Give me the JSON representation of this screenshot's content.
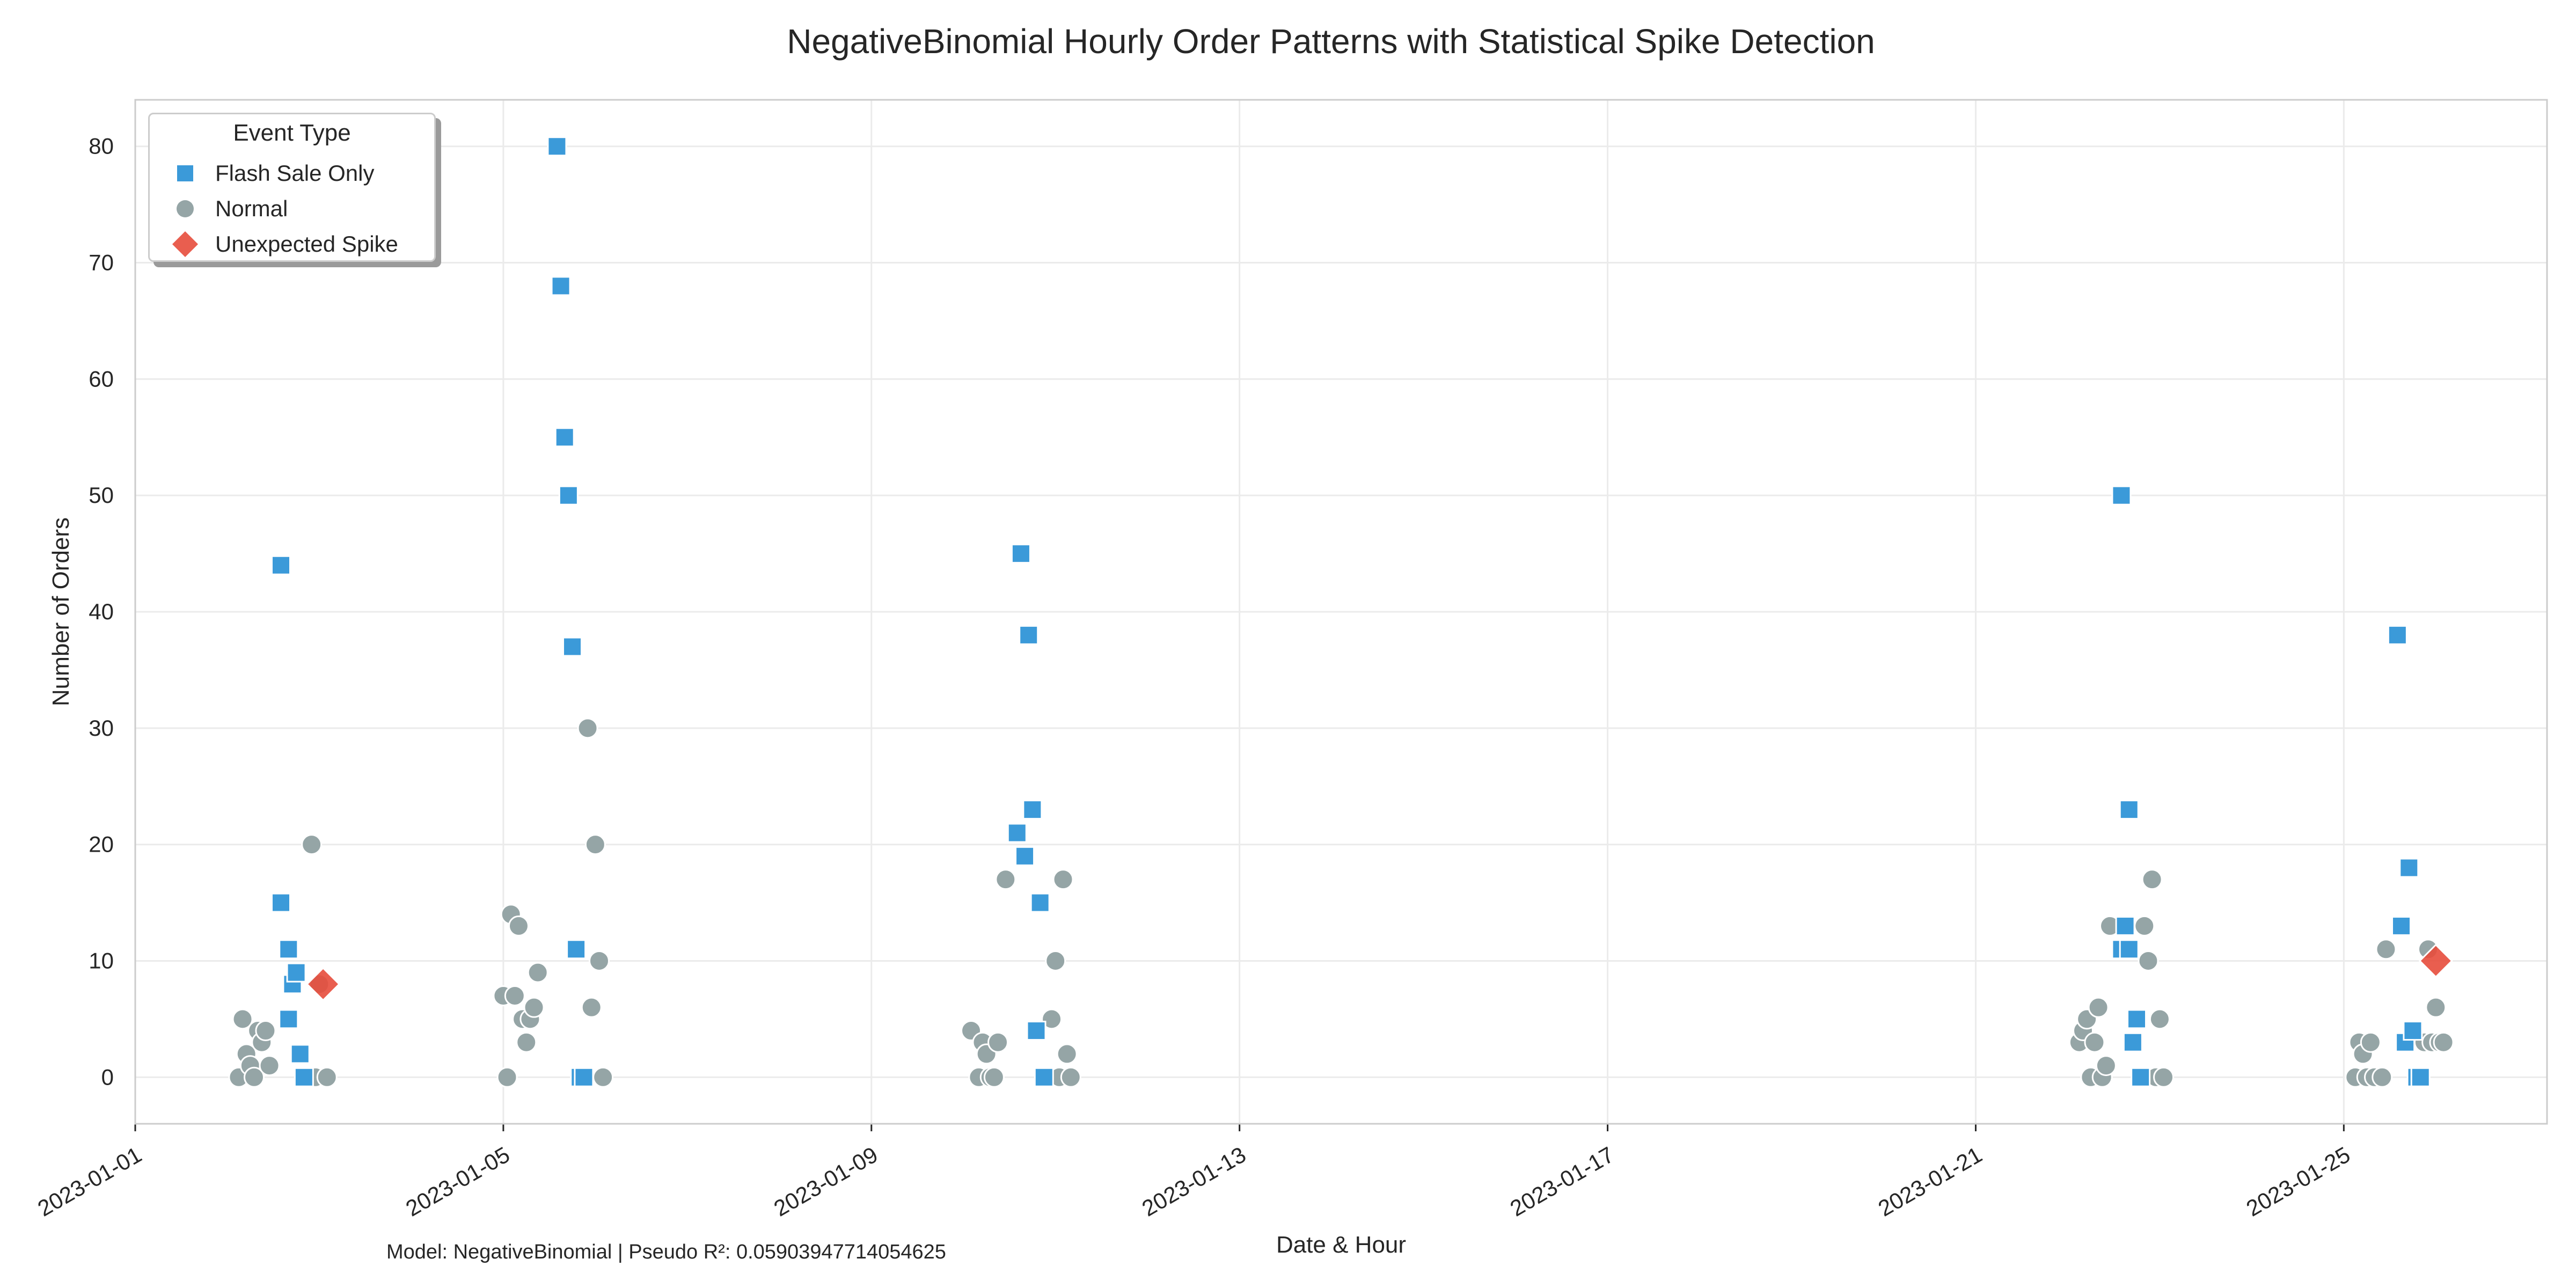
{
  "chart_data": {
    "type": "scatter",
    "title": "NegativeBinomial Hourly Order Patterns with Statistical Spike Detection",
    "xlabel": "Date & Hour",
    "ylabel": "Number of Orders",
    "xlim": [
      "2023-01-01T00:00",
      "2023-01-27T05:00"
    ],
    "ylim": [
      -4,
      84
    ],
    "x_ticks": [
      "2023-01-01",
      "2023-01-05",
      "2023-01-09",
      "2023-01-13",
      "2023-01-17",
      "2023-01-21",
      "2023-01-25"
    ],
    "y_ticks": [
      0,
      10,
      20,
      30,
      40,
      50,
      60,
      70,
      80
    ],
    "grid": true,
    "legend_title": "Event Type",
    "legend_position": "top-left",
    "colors": {
      "Flash Sale Only": "#3b9ad9",
      "Normal": "#95a5a6",
      "Unexpected Spike": "#e74c3c"
    },
    "markers": {
      "Flash Sale Only": "square",
      "Normal": "circle",
      "Unexpected Spike": "diamond"
    },
    "series": [
      {
        "name": "Flash Sale Only",
        "points": [
          {
            "x": "2023-01-02T14:00",
            "y": 44
          },
          {
            "x": "2023-01-02T14:00",
            "y": 15
          },
          {
            "x": "2023-01-02T16:00",
            "y": 11
          },
          {
            "x": "2023-01-02T16:00",
            "y": 5
          },
          {
            "x": "2023-01-02T17:00",
            "y": 8
          },
          {
            "x": "2023-01-02T18:00",
            "y": 9
          },
          {
            "x": "2023-01-02T19:00",
            "y": 2
          },
          {
            "x": "2023-01-02T20:00",
            "y": 0
          },
          {
            "x": "2023-01-05T14:00",
            "y": 80
          },
          {
            "x": "2023-01-05T15:00",
            "y": 68
          },
          {
            "x": "2023-01-05T16:00",
            "y": 55
          },
          {
            "x": "2023-01-05T17:00",
            "y": 50
          },
          {
            "x": "2023-01-05T18:00",
            "y": 37
          },
          {
            "x": "2023-01-05T19:00",
            "y": 11
          },
          {
            "x": "2023-01-05T20:00",
            "y": 0
          },
          {
            "x": "2023-01-05T21:00",
            "y": 0
          },
          {
            "x": "2023-01-10T14:00",
            "y": 21
          },
          {
            "x": "2023-01-10T15:00",
            "y": 45
          },
          {
            "x": "2023-01-10T16:00",
            "y": 19
          },
          {
            "x": "2023-01-10T17:00",
            "y": 38
          },
          {
            "x": "2023-01-10T18:00",
            "y": 23
          },
          {
            "x": "2023-01-10T19:00",
            "y": 4
          },
          {
            "x": "2023-01-10T20:00",
            "y": 15
          },
          {
            "x": "2023-01-10T21:00",
            "y": 0
          },
          {
            "x": "2023-01-22T14:00",
            "y": 11
          },
          {
            "x": "2023-01-22T14:00",
            "y": 50
          },
          {
            "x": "2023-01-22T15:00",
            "y": 13
          },
          {
            "x": "2023-01-22T16:00",
            "y": 23
          },
          {
            "x": "2023-01-22T16:00",
            "y": 11
          },
          {
            "x": "2023-01-22T17:00",
            "y": 3
          },
          {
            "x": "2023-01-22T18:00",
            "y": 5
          },
          {
            "x": "2023-01-22T19:00",
            "y": 0
          },
          {
            "x": "2023-01-25T14:00",
            "y": 38
          },
          {
            "x": "2023-01-25T15:00",
            "y": 13
          },
          {
            "x": "2023-01-25T16:00",
            "y": 3
          },
          {
            "x": "2023-01-25T17:00",
            "y": 18
          },
          {
            "x": "2023-01-25T18:00",
            "y": 4
          },
          {
            "x": "2023-01-25T19:00",
            "y": 0
          },
          {
            "x": "2023-01-25T20:00",
            "y": 0
          }
        ]
      },
      {
        "name": "Normal",
        "points": [
          {
            "x": "2023-01-02T03:00",
            "y": 0
          },
          {
            "x": "2023-01-02T04:00",
            "y": 5
          },
          {
            "x": "2023-01-02T05:00",
            "y": 2
          },
          {
            "x": "2023-01-02T06:00",
            "y": 1
          },
          {
            "x": "2023-01-02T07:00",
            "y": 0
          },
          {
            "x": "2023-01-02T08:00",
            "y": 4
          },
          {
            "x": "2023-01-02T09:00",
            "y": 3
          },
          {
            "x": "2023-01-02T10:00",
            "y": 4
          },
          {
            "x": "2023-01-02T11:00",
            "y": 1
          },
          {
            "x": "2023-01-02T22:00",
            "y": 20
          },
          {
            "x": "2023-01-02T23:00",
            "y": 0
          },
          {
            "x": "2023-01-03T00:00",
            "y": 8
          },
          {
            "x": "2023-01-03T02:00",
            "y": 0
          },
          {
            "x": "2023-01-05T00:00",
            "y": 7
          },
          {
            "x": "2023-01-05T01:00",
            "y": 0
          },
          {
            "x": "2023-01-05T02:00",
            "y": 14
          },
          {
            "x": "2023-01-05T03:00",
            "y": 7
          },
          {
            "x": "2023-01-05T04:00",
            "y": 13
          },
          {
            "x": "2023-01-05T05:00",
            "y": 5
          },
          {
            "x": "2023-01-05T06:00",
            "y": 3
          },
          {
            "x": "2023-01-05T07:00",
            "y": 5
          },
          {
            "x": "2023-01-05T08:00",
            "y": 6
          },
          {
            "x": "2023-01-05T09:00",
            "y": 9
          },
          {
            "x": "2023-01-05T22:00",
            "y": 30
          },
          {
            "x": "2023-01-05T23:00",
            "y": 6
          },
          {
            "x": "2023-01-06T00:00",
            "y": 20
          },
          {
            "x": "2023-01-06T01:00",
            "y": 10
          },
          {
            "x": "2023-01-06T02:00",
            "y": 0
          },
          {
            "x": "2023-01-10T02:00",
            "y": 4
          },
          {
            "x": "2023-01-10T04:00",
            "y": 0
          },
          {
            "x": "2023-01-10T05:00",
            "y": 3
          },
          {
            "x": "2023-01-10T06:00",
            "y": 2
          },
          {
            "x": "2023-01-10T07:00",
            "y": 0
          },
          {
            "x": "2023-01-10T08:00",
            "y": 0
          },
          {
            "x": "2023-01-10T09:00",
            "y": 3
          },
          {
            "x": "2023-01-10T11:00",
            "y": 17
          },
          {
            "x": "2023-01-10T22:00",
            "y": 0
          },
          {
            "x": "2023-01-10T23:00",
            "y": 5
          },
          {
            "x": "2023-01-11T00:00",
            "y": 10
          },
          {
            "x": "2023-01-11T01:00",
            "y": 0
          },
          {
            "x": "2023-01-11T02:00",
            "y": 17
          },
          {
            "x": "2023-01-11T03:00",
            "y": 2
          },
          {
            "x": "2023-01-11T04:00",
            "y": 0
          },
          {
            "x": "2023-01-22T03:00",
            "y": 3
          },
          {
            "x": "2023-01-22T04:00",
            "y": 4
          },
          {
            "x": "2023-01-22T05:00",
            "y": 5
          },
          {
            "x": "2023-01-22T06:00",
            "y": 0
          },
          {
            "x": "2023-01-22T07:00",
            "y": 3
          },
          {
            "x": "2023-01-22T08:00",
            "y": 6
          },
          {
            "x": "2023-01-22T09:00",
            "y": 0
          },
          {
            "x": "2023-01-22T10:00",
            "y": 1
          },
          {
            "x": "2023-01-22T11:00",
            "y": 13
          },
          {
            "x": "2023-01-22T20:00",
            "y": 13
          },
          {
            "x": "2023-01-22T21:00",
            "y": 10
          },
          {
            "x": "2023-01-22T22:00",
            "y": 17
          },
          {
            "x": "2023-01-22T23:00",
            "y": 0
          },
          {
            "x": "2023-01-23T00:00",
            "y": 5
          },
          {
            "x": "2023-01-23T01:00",
            "y": 0
          },
          {
            "x": "2023-01-25T03:00",
            "y": 0
          },
          {
            "x": "2023-01-25T04:00",
            "y": 3
          },
          {
            "x": "2023-01-25T05:00",
            "y": 2
          },
          {
            "x": "2023-01-25T06:00",
            "y": 0
          },
          {
            "x": "2023-01-25T07:00",
            "y": 3
          },
          {
            "x": "2023-01-25T08:00",
            "y": 0
          },
          {
            "x": "2023-01-25T10:00",
            "y": 0
          },
          {
            "x": "2023-01-25T11:00",
            "y": 11
          },
          {
            "x": "2023-01-25T21:00",
            "y": 3
          },
          {
            "x": "2023-01-25T22:00",
            "y": 11
          },
          {
            "x": "2023-01-25T23:00",
            "y": 3
          },
          {
            "x": "2023-01-26T00:00",
            "y": 6
          },
          {
            "x": "2023-01-26T01:00",
            "y": 3
          },
          {
            "x": "2023-01-26T02:00",
            "y": 3
          }
        ]
      },
      {
        "name": "Unexpected Spike",
        "points": [
          {
            "x": "2023-01-03T01:00",
            "y": 8
          },
          {
            "x": "2023-01-26T00:00",
            "y": 10
          }
        ]
      }
    ]
  },
  "footnote": "Model: NegativeBinomial | Pseudo R²: 0.05903947714054625"
}
